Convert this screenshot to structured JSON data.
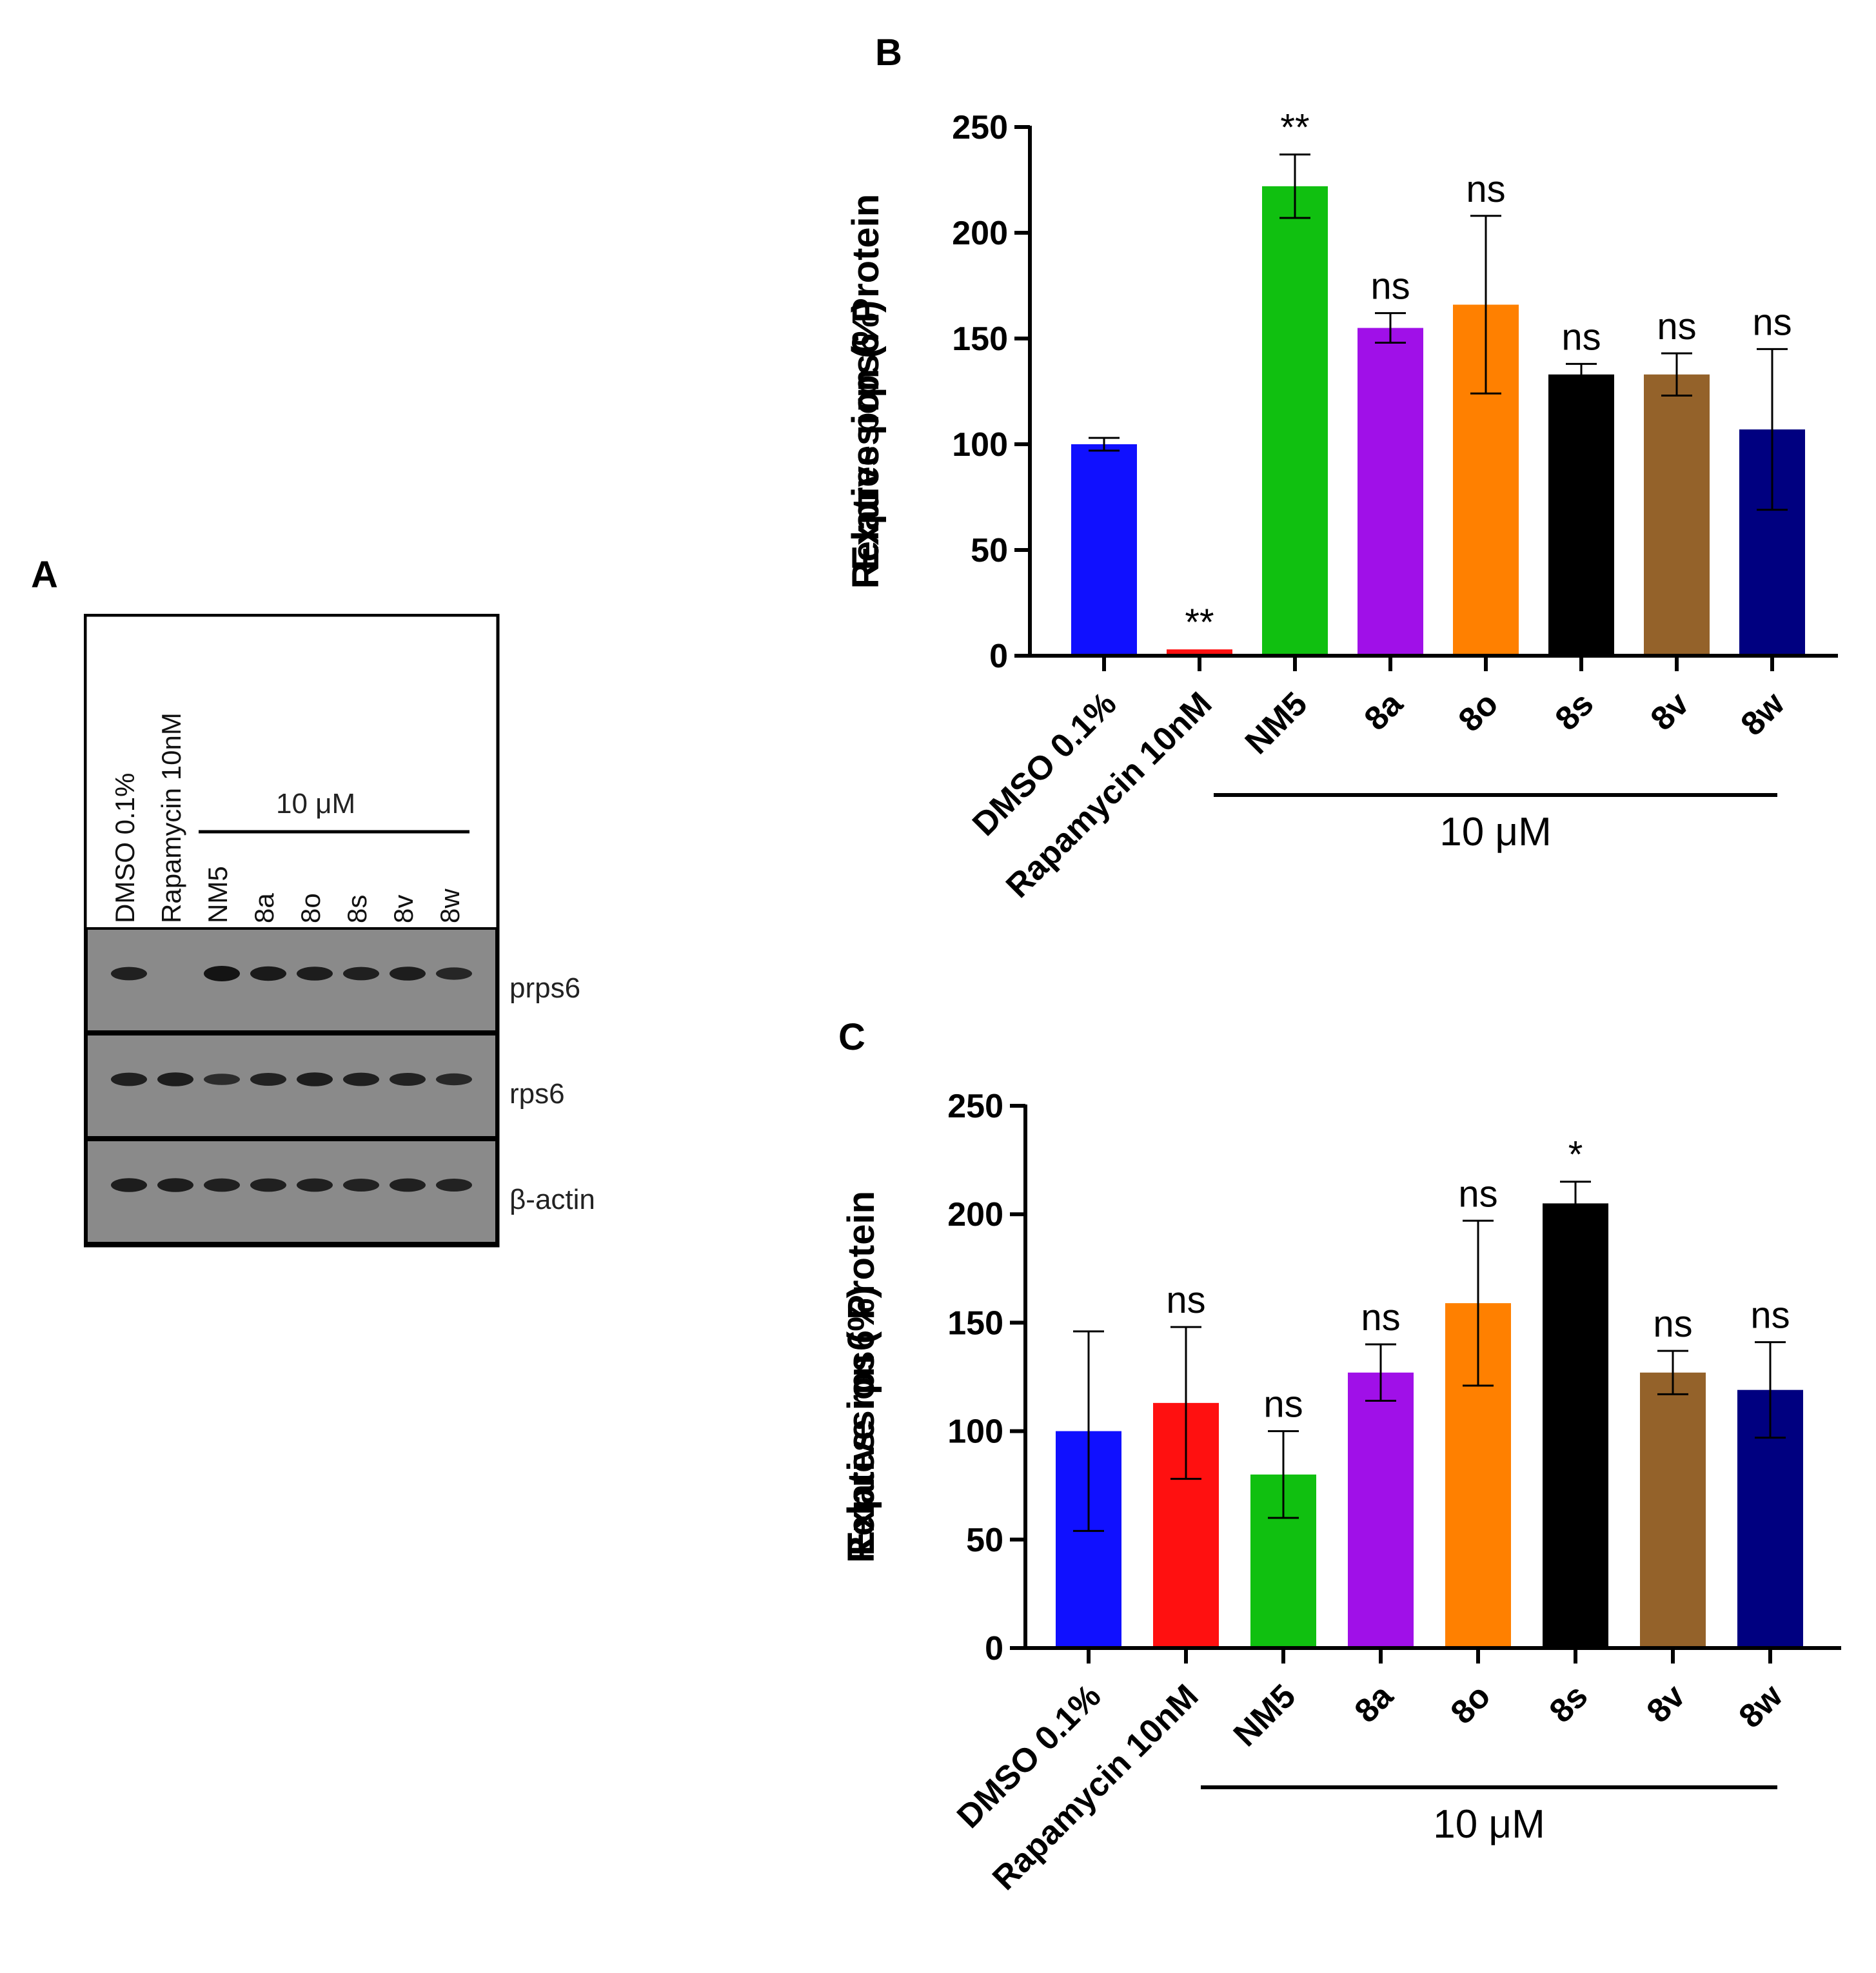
{
  "panels": {
    "a": "A",
    "b": "B",
    "c": "C"
  },
  "blot": {
    "lanes": [
      "DMSO 0.1%",
      "Rapamycin 10nM",
      "NM5",
      "8a",
      "8o",
      "8s",
      "8v",
      "8w"
    ],
    "concentration": "10 μM",
    "bands": [
      {
        "label": "prps6",
        "intensity": [
          0.8,
          0.0,
          1.0,
          0.9,
          0.85,
          0.8,
          0.85,
          0.7
        ]
      },
      {
        "label": "rps6",
        "intensity": [
          0.8,
          0.85,
          0.6,
          0.75,
          0.85,
          0.8,
          0.75,
          0.65
        ]
      },
      {
        "label": "β-actin",
        "intensity": [
          0.85,
          0.85,
          0.8,
          0.8,
          0.8,
          0.75,
          0.8,
          0.75
        ]
      }
    ]
  },
  "chart_data": [
    {
      "type": "bar",
      "panel": "B",
      "categories": [
        "DMSO 0.1%",
        "Rapamycin 10nM",
        "NM5",
        "8a",
        "8o",
        "8s",
        "8v",
        "8w"
      ],
      "values": [
        100,
        3,
        222,
        155,
        166,
        133,
        133,
        107
      ],
      "errors": [
        3,
        0,
        15,
        7,
        42,
        5,
        10,
        38
      ],
      "significance": [
        "",
        "**",
        "**",
        "ns",
        "ns",
        "ns",
        "ns",
        "ns"
      ],
      "colors": [
        "#1010ff",
        "#ff1010",
        "#10c010",
        "#a010e8",
        "#ff8000",
        "#000000",
        "#94622a",
        "#000080"
      ],
      "ylabel_line1": "Relative prps6 Protein",
      "ylabel_line2": "Expression (%)",
      "ylim": [
        0,
        250
      ],
      "yticks": [
        "0",
        "50",
        "100",
        "150",
        "200",
        "250"
      ],
      "group_label": "10 μM"
    },
    {
      "type": "bar",
      "panel": "C",
      "categories": [
        "DMSO 0.1%",
        "Rapamycin 10nM",
        "NM5",
        "8a",
        "8o",
        "8s",
        "8v",
        "8w"
      ],
      "values": [
        100,
        113,
        80,
        127,
        159,
        205,
        127,
        119
      ],
      "errors": [
        46,
        35,
        20,
        13,
        38,
        10,
        10,
        22
      ],
      "significance": [
        "",
        "ns",
        "ns",
        "ns",
        "ns",
        "*",
        "ns",
        "ns"
      ],
      "colors": [
        "#1010ff",
        "#ff1010",
        "#10c010",
        "#a010e8",
        "#ff8000",
        "#000000",
        "#94622a",
        "#000080"
      ],
      "ylabel_line1": "Relative rps6 Protein",
      "ylabel_line2": "Expression (%)",
      "ylim": [
        0,
        250
      ],
      "yticks": [
        "0",
        "50",
        "100",
        "150",
        "200",
        "250"
      ],
      "group_label": "10 μM"
    }
  ]
}
